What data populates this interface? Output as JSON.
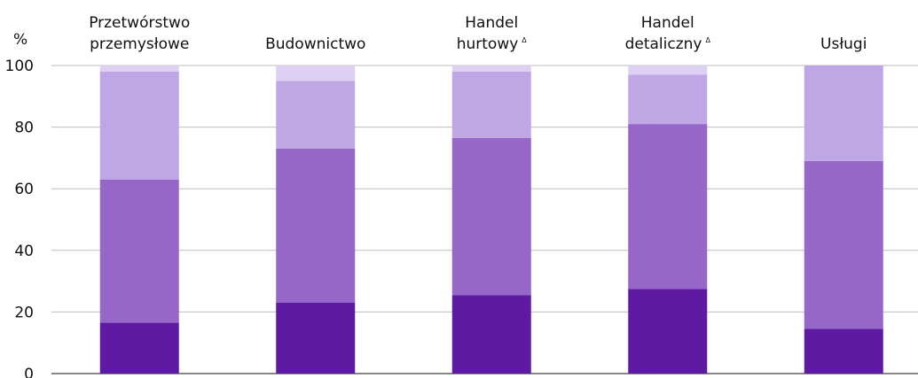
{
  "chart_data": {
    "type": "bar",
    "stacked": true,
    "y_unit_label": "%",
    "ylim": [
      0,
      100
    ],
    "y_ticks": [
      "0",
      "20",
      "40",
      "60",
      "80",
      "100"
    ],
    "grid": "horizontal",
    "categories": [
      {
        "lines": [
          "Przetwórstwo",
          "przemysłowe"
        ],
        "mark": ""
      },
      {
        "lines": [
          "Budownictwo"
        ],
        "mark": ""
      },
      {
        "lines": [
          "Handel",
          "hurtowy"
        ],
        "mark": "Δ"
      },
      {
        "lines": [
          "Handel",
          "detaliczny"
        ],
        "mark": "Δ"
      },
      {
        "lines": [
          "Usługi"
        ],
        "mark": ""
      }
    ],
    "series": [
      {
        "color": "#5e1aa0",
        "values": [
          16.5,
          23,
          25.5,
          27.5,
          14.5
        ]
      },
      {
        "color": "#9666c8",
        "values": [
          46.5,
          50,
          51,
          53.5,
          54.5
        ]
      },
      {
        "color": "#bfa6e4",
        "values": [
          35,
          22,
          21.5,
          16,
          31
        ]
      },
      {
        "color": "#ddd0f3",
        "values": [
          2,
          5,
          2,
          3,
          0
        ]
      }
    ]
  }
}
